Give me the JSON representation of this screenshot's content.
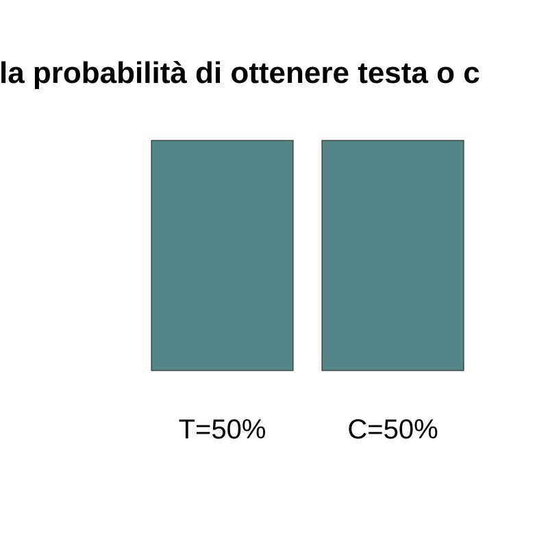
{
  "chart_data": {
    "type": "bar",
    "title": "la probabilità di ottenere testa o c",
    "categories": [
      "T=50%",
      "C=50%"
    ],
    "values": [
      50,
      50
    ],
    "ylim": [
      0,
      50
    ],
    "grid": false,
    "legend": "none",
    "bar_color": "#548687",
    "bar_border_color": "#1a1a1a"
  }
}
